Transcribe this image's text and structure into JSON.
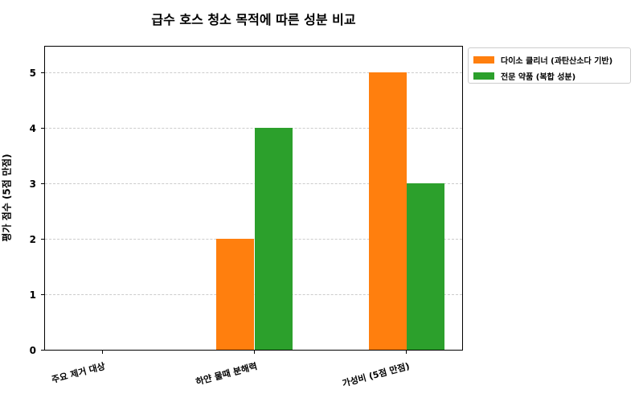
{
  "chart_data": {
    "type": "bar",
    "title": "급수 호스 청소 목적에 따른 성분 비교",
    "xlabel": "",
    "ylabel": "평가 점수 (5점 만점)",
    "categories": [
      "주요 제거 대상",
      "하얀 물때 분해력",
      "가성비 (5점 만점)"
    ],
    "series": [
      {
        "name": "다이소 클리너 (과탄산소다 기반)",
        "color": "#ff7f0e",
        "values": [
          0,
          2,
          5
        ]
      },
      {
        "name": "전문 약품 (복합 성분)",
        "color": "#2ca02c",
        "values": [
          0,
          4,
          3
        ]
      }
    ],
    "ylim": [
      0,
      5.5
    ],
    "yticks": [
      0,
      1,
      2,
      3,
      4,
      5
    ],
    "grid": {
      "axis": "y",
      "style": "dashed"
    },
    "legend_position": "outside upper right",
    "xtick_rotation": 15
  }
}
